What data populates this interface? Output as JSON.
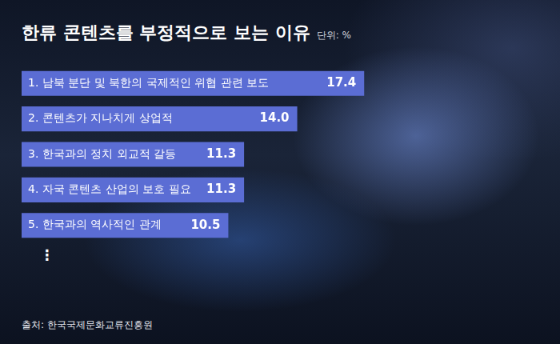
{
  "chart_data": {
    "type": "bar",
    "orientation": "horizontal",
    "title": "한류 콘텐츠를 부정적으로 보는 이유",
    "subtitle": "단위: %",
    "categories": [
      "1. 남북 분단 및 북한의 국제적인 위협 관련 보도",
      "2. 콘텐츠가 지나치게 상업적",
      "3. 한국과의 정치 외교적 갈등",
      "4. 자국 콘텐츠 산업의 보호 필요",
      "5. 한국과의 역사적인 관계"
    ],
    "values": [
      17.4,
      14.0,
      11.3,
      11.3,
      10.5
    ],
    "value_labels": [
      "17.4",
      "14.0",
      "11.3",
      "11.3",
      "10.5"
    ],
    "data_labels": true,
    "color": "#5b6dd4",
    "xlim": [
      0,
      18
    ],
    "tick_labels": false,
    "grid": false,
    "annotations": [
      "⋮"
    ],
    "source": "출처: 한국국제문화교류진흥원"
  }
}
